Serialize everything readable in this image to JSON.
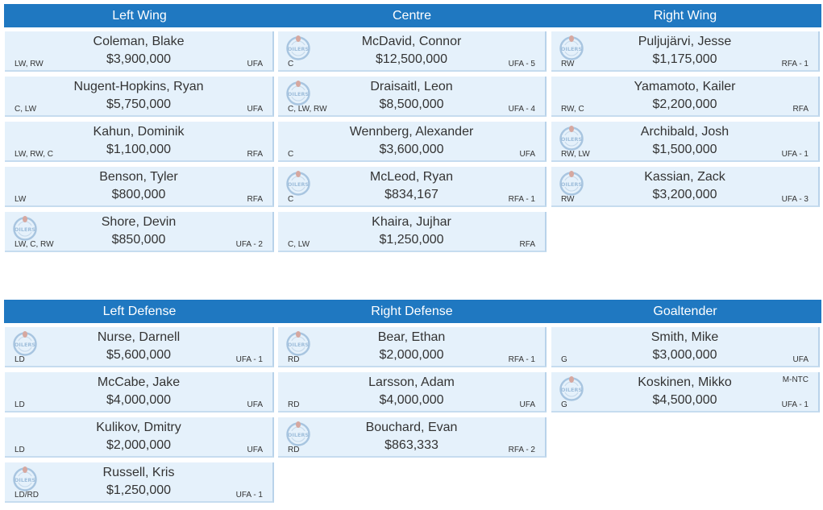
{
  "forwards": {
    "headers": [
      "Left Wing",
      "Centre",
      "Right Wing"
    ],
    "columns": [
      [
        {
          "name": "Coleman, Blake",
          "salary": "$3,900,000",
          "pos": "LW, RW",
          "status": "UFA",
          "logo": false
        },
        {
          "name": "Nugent-Hopkins, Ryan",
          "salary": "$5,750,000",
          "pos": "C, LW",
          "status": "UFA",
          "logo": false
        },
        {
          "name": "Kahun, Dominik",
          "salary": "$1,100,000",
          "pos": "LW, RW, C",
          "status": "RFA",
          "logo": false
        },
        {
          "name": "Benson, Tyler",
          "salary": "$800,000",
          "pos": "LW",
          "status": "RFA",
          "logo": false
        },
        {
          "name": "Shore, Devin",
          "salary": "$850,000",
          "pos": "LW, C, RW",
          "status": "UFA - 2",
          "logo": true
        }
      ],
      [
        {
          "name": "McDavid, Connor",
          "salary": "$12,500,000",
          "pos": "C",
          "status": "UFA - 5",
          "logo": true
        },
        {
          "name": "Draisaitl, Leon",
          "salary": "$8,500,000",
          "pos": "C, LW, RW",
          "status": "UFA - 4",
          "logo": true
        },
        {
          "name": "Wennberg, Alexander",
          "salary": "$3,600,000",
          "pos": "C",
          "status": "UFA",
          "logo": false
        },
        {
          "name": "McLeod, Ryan",
          "salary": "$834,167",
          "pos": "C",
          "status": "RFA - 1",
          "logo": true
        },
        {
          "name": "Khaira, Jujhar",
          "salary": "$1,250,000",
          "pos": "C, LW",
          "status": "RFA",
          "logo": false
        }
      ],
      [
        {
          "name": "Puljujärvi, Jesse",
          "salary": "$1,175,000",
          "pos": "RW",
          "status": "RFA - 1",
          "logo": true
        },
        {
          "name": "Yamamoto, Kailer",
          "salary": "$2,200,000",
          "pos": "RW, C",
          "status": "RFA",
          "logo": false
        },
        {
          "name": "Archibald, Josh",
          "salary": "$1,500,000",
          "pos": "RW, LW",
          "status": "UFA - 1",
          "logo": true
        },
        {
          "name": "Kassian, Zack",
          "salary": "$3,200,000",
          "pos": "RW",
          "status": "UFA - 3",
          "logo": true
        }
      ]
    ]
  },
  "defense": {
    "headers": [
      "Left Defense",
      "Right Defense",
      "Goaltender"
    ],
    "columns": [
      [
        {
          "name": "Nurse, Darnell",
          "salary": "$5,600,000",
          "pos": "LD",
          "status": "UFA - 1",
          "logo": true
        },
        {
          "name": "McCabe, Jake",
          "salary": "$4,000,000",
          "pos": "LD",
          "status": "UFA",
          "logo": false
        },
        {
          "name": "Kulikov, Dmitry",
          "salary": "$2,000,000",
          "pos": "LD",
          "status": "UFA",
          "logo": false
        },
        {
          "name": "Russell, Kris",
          "salary": "$1,250,000",
          "pos": "LD/RD",
          "status": "UFA - 1",
          "logo": true
        }
      ],
      [
        {
          "name": "Bear, Ethan",
          "salary": "$2,000,000",
          "pos": "RD",
          "status": "RFA - 1",
          "logo": true
        },
        {
          "name": "Larsson, Adam",
          "salary": "$4,000,000",
          "pos": "RD",
          "status": "UFA",
          "logo": false
        },
        {
          "name": "Bouchard, Evan",
          "salary": "$863,333",
          "pos": "RD",
          "status": "RFA - 2",
          "logo": true
        }
      ],
      [
        {
          "name": "Smith, Mike",
          "salary": "$3,000,000",
          "pos": "G",
          "status": "UFA",
          "logo": false
        },
        {
          "name": "Koskinen, Mikko",
          "salary": "$4,500,000",
          "pos": "G",
          "status": "UFA - 1",
          "extra": "M-NTC",
          "logo": true
        }
      ]
    ]
  },
  "logo_text": "OILERS",
  "colors": {
    "header": "#1f78c1",
    "card": "#e5f1fb",
    "logo": "#a8c5e0"
  }
}
